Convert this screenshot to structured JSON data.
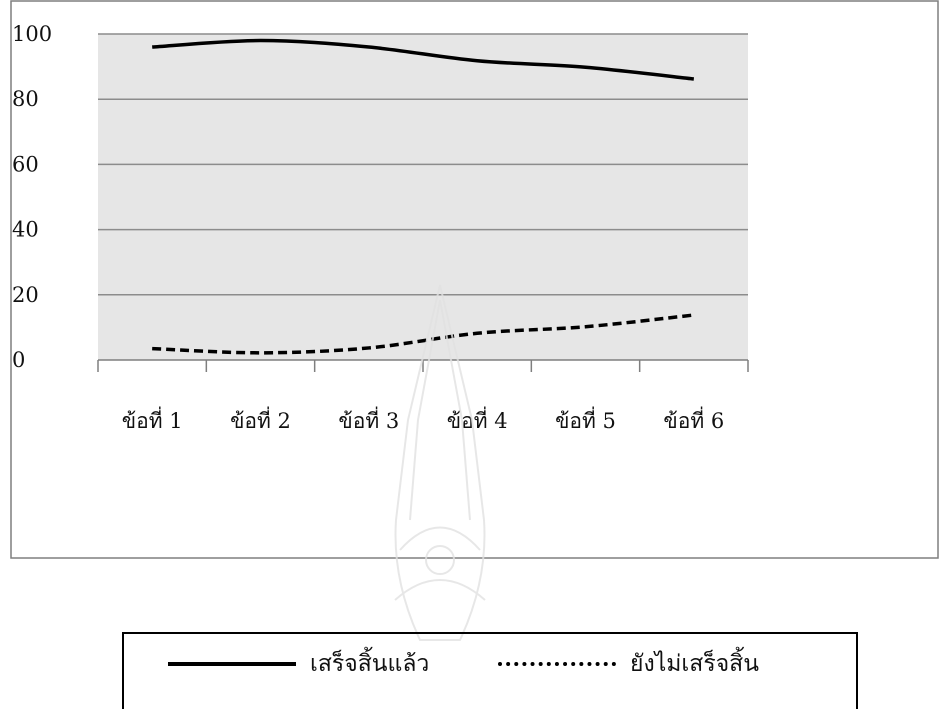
{
  "chart_data": {
    "type": "line",
    "title": "",
    "xlabel": "",
    "ylabel": "",
    "categories": [
      "ข้อที่ 1",
      "ข้อที่ 2",
      "ข้อที่ 3",
      "ข้อที่ 4",
      "ข้อที่ 5",
      "ข้อที่ 6"
    ],
    "yticks": [
      "0",
      "20",
      "40",
      "60",
      "80",
      "100"
    ],
    "ylim": [
      0,
      100
    ],
    "grid": true,
    "legend_position": "bottom",
    "series": [
      {
        "name": "เสร็จสิ้นแล้ว",
        "values": [
          96,
          98,
          96,
          91.8,
          89.8,
          86.2
        ],
        "color": "#000000",
        "dash": "solid"
      },
      {
        "name": "ยังไม่เสร็จสิ้น",
        "values": [
          3.5,
          2.2,
          3.7,
          8.2,
          10.2,
          13.8
        ],
        "color": "#000000",
        "dash": "dashed"
      }
    ],
    "colors": {
      "plot_background": "#e6e6e6",
      "gridline": "#8c8c8c",
      "frame": "#7f7f7f"
    }
  },
  "legend": {
    "items": [
      {
        "label": "เสร็จสิ้นแล้ว"
      },
      {
        "label": "ยังไม่เสร็จสิ้น"
      }
    ]
  }
}
